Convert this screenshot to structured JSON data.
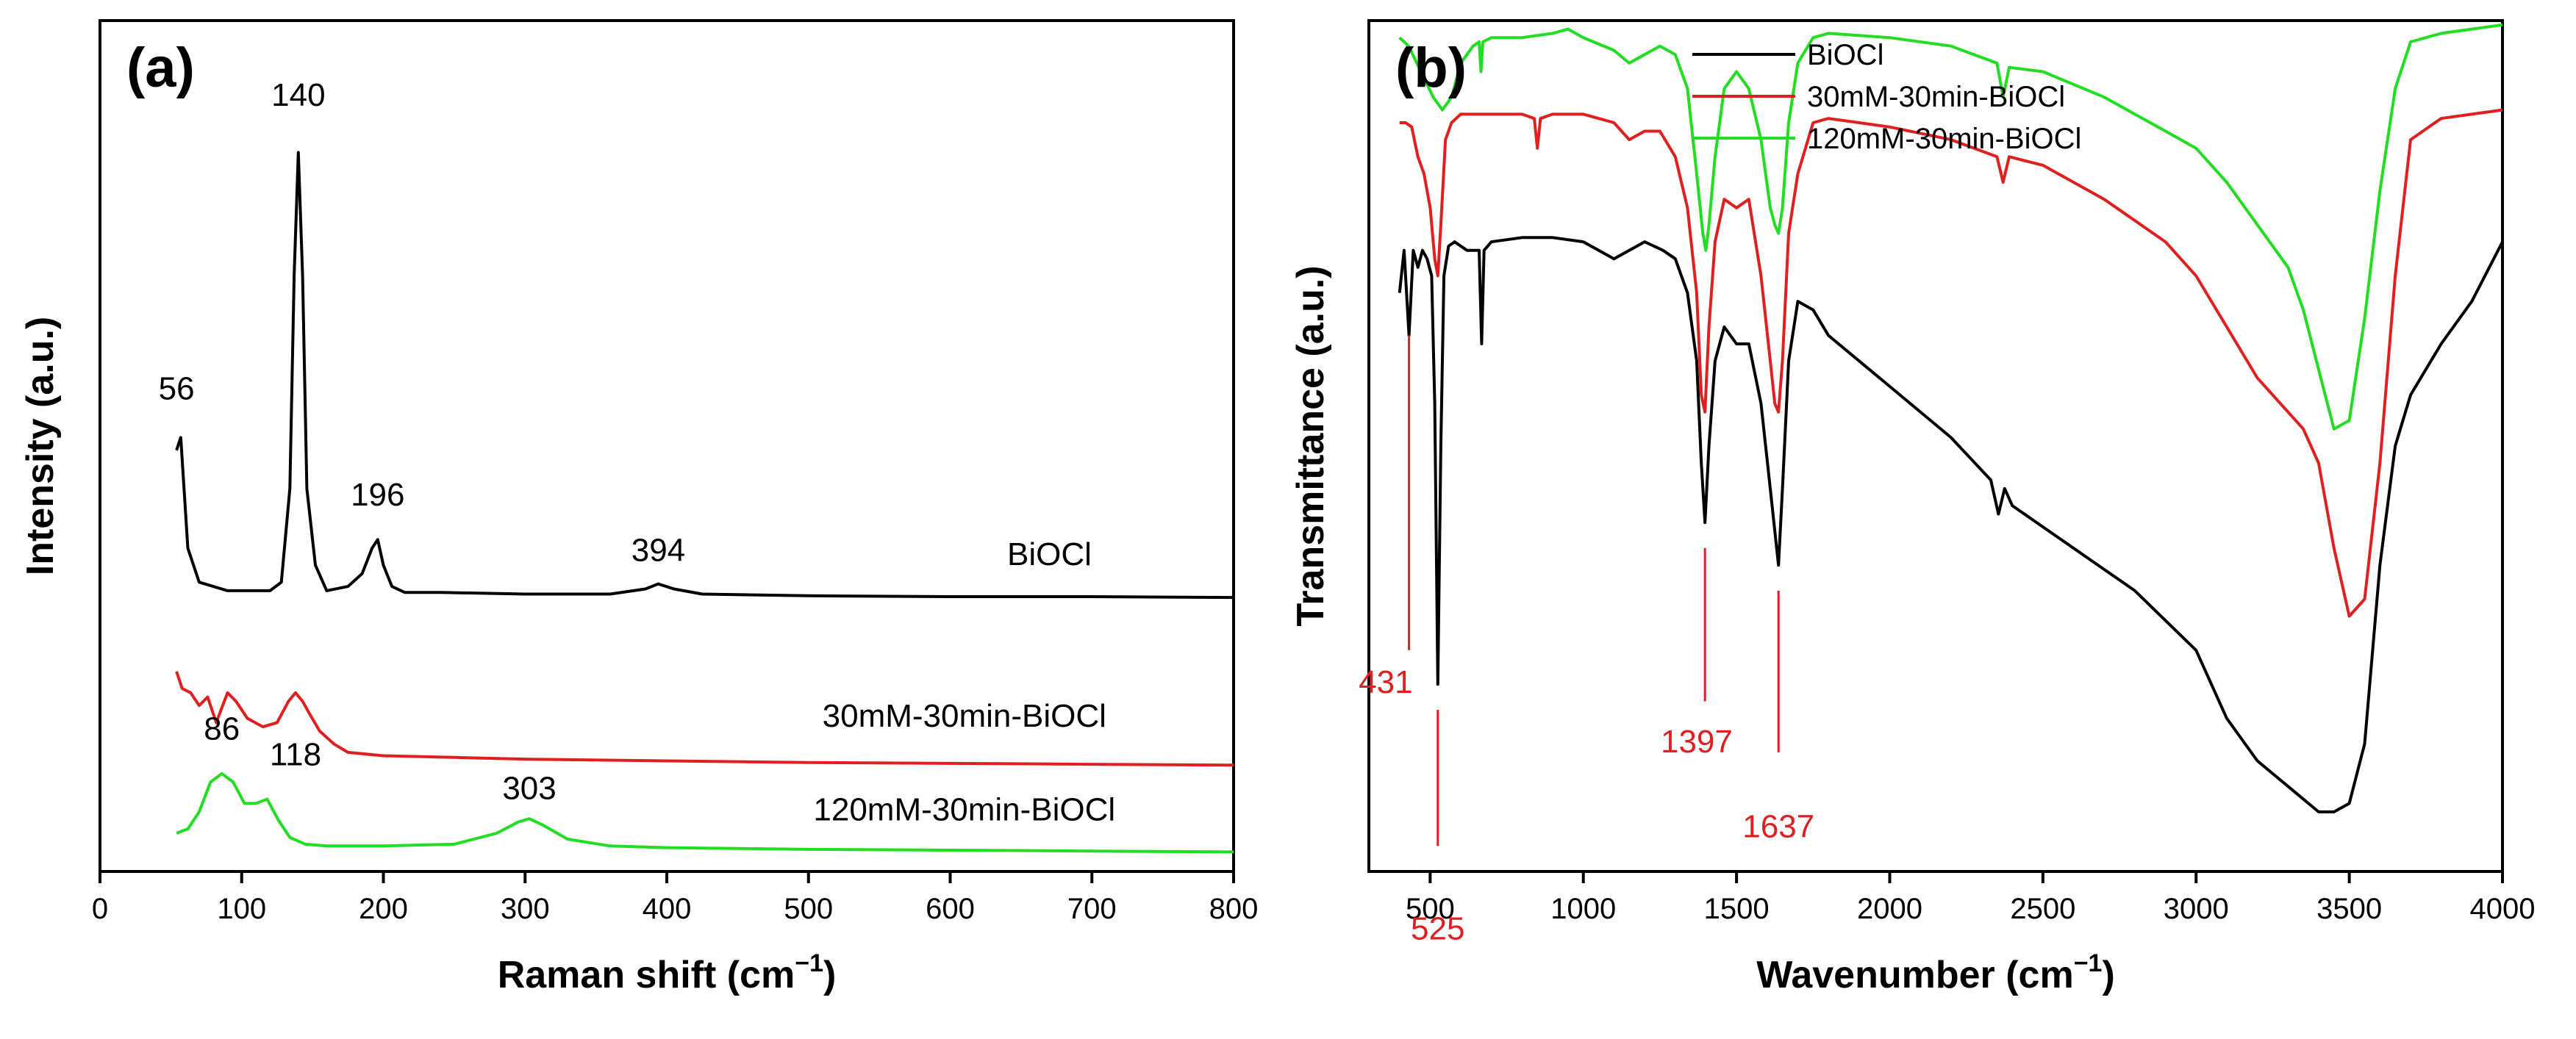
{
  "chart_data": [
    {
      "type": "line",
      "panel_label": "(a)",
      "xlabel": "Raman shift (cm",
      "xlabel_sup": "−1",
      "xlabel_close": ")",
      "ylabel": "Intensity (a.u.)",
      "xlim": [
        0,
        800
      ],
      "ylim": [
        0,
        100
      ],
      "yticks_visible": false,
      "xticks": [
        0,
        100,
        200,
        300,
        400,
        500,
        600,
        700,
        800
      ],
      "xtick_labels": [
        "0",
        "100",
        "200",
        "300",
        "400",
        "500",
        "600",
        "700",
        "800"
      ],
      "series": [
        {
          "name": "BiOCl",
          "color": "#000000",
          "x": [
            54,
            57,
            62,
            70,
            90,
            120,
            128,
            134,
            137,
            140,
            143,
            146,
            152,
            160,
            175,
            185,
            192,
            196,
            200,
            206,
            215,
            240,
            300,
            360,
            385,
            394,
            405,
            425,
            500,
            600,
            700,
            800
          ],
          "y": [
            49.5,
            51.0,
            38.0,
            34.0,
            33.0,
            33.0,
            34.0,
            45.0,
            70.0,
            84.5,
            70.0,
            45.0,
            36.0,
            33.0,
            33.5,
            35.0,
            38.0,
            39.0,
            36.0,
            33.5,
            32.8,
            32.8,
            32.6,
            32.6,
            33.2,
            33.8,
            33.2,
            32.6,
            32.4,
            32.3,
            32.3,
            32.2
          ]
        },
        {
          "name": "30mM-30min-BiOCl",
          "color": "#e02020",
          "x": [
            54,
            58,
            64,
            70,
            76,
            82,
            90,
            96,
            104,
            115,
            125,
            133,
            138,
            143,
            148,
            155,
            165,
            175,
            200,
            250,
            300,
            400,
            500,
            600,
            700,
            800
          ],
          "y": [
            23.5,
            21.5,
            21.0,
            19.5,
            20.5,
            17.5,
            21.0,
            20.0,
            18.0,
            17.0,
            17.5,
            20.0,
            21.0,
            20.0,
            18.5,
            16.5,
            15.0,
            14.0,
            13.6,
            13.4,
            13.2,
            13.0,
            12.8,
            12.7,
            12.6,
            12.5
          ]
        },
        {
          "name": "120mM-30min-BiOCl",
          "color": "#22dd22",
          "x": [
            54,
            62,
            70,
            78,
            86,
            94,
            102,
            110,
            118,
            126,
            134,
            145,
            160,
            200,
            250,
            280,
            295,
            303,
            312,
            330,
            360,
            400,
            500,
            600,
            700,
            800
          ],
          "y": [
            4.5,
            5.0,
            7.0,
            10.5,
            11.5,
            10.5,
            8.0,
            8.0,
            8.5,
            6.0,
            4.0,
            3.2,
            3.0,
            3.0,
            3.2,
            4.5,
            5.8,
            6.2,
            5.5,
            3.8,
            3.0,
            2.8,
            2.6,
            2.5,
            2.4,
            2.3
          ]
        }
      ],
      "annotations": [
        {
          "text": "56",
          "x": 54,
          "y": 55.5,
          "color": "#000000"
        },
        {
          "text": "140",
          "x": 140,
          "y": 90,
          "color": "#000000"
        },
        {
          "text": "196",
          "x": 196,
          "y": 43,
          "color": "#000000"
        },
        {
          "text": "394",
          "x": 394,
          "y": 36.5,
          "color": "#000000"
        },
        {
          "text": "BiOCl",
          "x": 670,
          "y": 36,
          "color": "#000000"
        },
        {
          "text": "30mM-30min-BiOCl",
          "x": 610,
          "y": 17,
          "color": "#000000"
        },
        {
          "text": "86",
          "x": 86,
          "y": 15.5,
          "color": "#000000"
        },
        {
          "text": "118",
          "x": 138,
          "y": 12.5,
          "color": "#000000"
        },
        {
          "text": "303",
          "x": 303,
          "y": 8.5,
          "color": "#000000"
        },
        {
          "text": "120mM-30min-BiOCl",
          "x": 610,
          "y": 6,
          "color": "#000000"
        }
      ]
    },
    {
      "type": "line",
      "panel_label": "(b)",
      "xlabel": "Wavenumber (cm",
      "xlabel_sup": "−1",
      "xlabel_close": ")",
      "ylabel": "Transmittance (a.u.)",
      "xlim": [
        300,
        4000
      ],
      "ylim": [
        0,
        100
      ],
      "yticks_visible": false,
      "xticks": [
        500,
        1000,
        1500,
        2000,
        2500,
        3000,
        3500,
        4000
      ],
      "xtick_labels": [
        "500",
        "1000",
        "1500",
        "2000",
        "2500",
        "3000",
        "3500",
        "4000"
      ],
      "legend_position": "top-center",
      "series": [
        {
          "name": "BiOCl",
          "color": "#000000",
          "x": [
            400,
            415,
            431,
            445,
            460,
            475,
            490,
            505,
            515,
            525,
            535,
            545,
            560,
            580,
            620,
            660,
            668,
            676,
            700,
            800,
            900,
            1000,
            1100,
            1200,
            1260,
            1300,
            1340,
            1370,
            1385,
            1397,
            1410,
            1430,
            1460,
            1500,
            1540,
            1580,
            1610,
            1625,
            1637,
            1650,
            1670,
            1700,
            1750,
            1800,
            2000,
            2200,
            2330,
            2355,
            2375,
            2400,
            2600,
            2800,
            3000,
            3100,
            3200,
            3300,
            3400,
            3450,
            3500,
            3550,
            3600,
            3650,
            3700,
            3800,
            3900,
            4000
          ],
          "y": [
            68.0,
            73.0,
            63.0,
            73.0,
            71.0,
            73.0,
            72.0,
            70.0,
            55.0,
            22.0,
            50.0,
            70.0,
            73.5,
            74.0,
            73.0,
            73.0,
            62.0,
            73.0,
            74.0,
            74.5,
            74.5,
            74.0,
            72.0,
            74.0,
            73.0,
            72.0,
            68.0,
            60.0,
            48.0,
            41.0,
            50.0,
            60.0,
            64.0,
            62.0,
            62.0,
            55.0,
            45.0,
            40.0,
            36.0,
            45.0,
            60.0,
            67.0,
            66.0,
            63.0,
            57.0,
            51.0,
            46.0,
            42.0,
            45.0,
            43.0,
            38.0,
            33.0,
            26.0,
            18.0,
            13.0,
            10.0,
            7.0,
            7.0,
            8.0,
            15.0,
            36.0,
            50.0,
            56.0,
            62.0,
            67.0,
            74.0
          ]
        },
        {
          "name": "30mM-30min-BiOCl",
          "color": "#e02020",
          "x": [
            400,
            420,
            440,
            460,
            480,
            500,
            515,
            525,
            535,
            550,
            570,
            600,
            700,
            800,
            840,
            850,
            860,
            900,
            1000,
            1100,
            1150,
            1200,
            1250,
            1300,
            1340,
            1370,
            1385,
            1397,
            1410,
            1430,
            1460,
            1500,
            1540,
            1580,
            1610,
            1625,
            1637,
            1650,
            1670,
            1700,
            1750,
            1800,
            2000,
            2200,
            2350,
            2370,
            2390,
            2500,
            2700,
            2900,
            3000,
            3100,
            3200,
            3300,
            3350,
            3400,
            3450,
            3500,
            3550,
            3600,
            3650,
            3700,
            3800,
            3900,
            4000
          ],
          "y": [
            88.0,
            88.0,
            87.5,
            84.0,
            82.0,
            78.0,
            72.0,
            70.0,
            76.0,
            86.0,
            88.0,
            89.0,
            89.0,
            89.0,
            88.5,
            85.0,
            88.5,
            89.0,
            89.0,
            88.0,
            86.0,
            87.0,
            87.0,
            84.0,
            78.0,
            68.0,
            56.0,
            54.0,
            64.0,
            74.0,
            79.0,
            78.0,
            79.0,
            70.0,
            60.0,
            55.0,
            54.0,
            60.0,
            75.0,
            82.0,
            88.0,
            88.5,
            87.5,
            86.0,
            84.0,
            81.0,
            84.0,
            83.0,
            79.0,
            74.0,
            70.0,
            64.0,
            58.0,
            54.0,
            52.0,
            48.0,
            38.0,
            30.0,
            32.0,
            48.0,
            70.0,
            86.0,
            88.5,
            89.0,
            89.5
          ]
        },
        {
          "name": "120mM-30min-BiOCl",
          "color": "#22dd22",
          "x": [
            400,
            430,
            470,
            510,
            540,
            570,
            600,
            640,
            660,
            666,
            672,
            700,
            800,
            900,
            950,
            1000,
            1100,
            1150,
            1200,
            1250,
            1300,
            1340,
            1370,
            1390,
            1400,
            1410,
            1430,
            1460,
            1500,
            1540,
            1580,
            1610,
            1625,
            1637,
            1650,
            1670,
            1700,
            1750,
            1800,
            2000,
            2200,
            2350,
            2370,
            2390,
            2500,
            2700,
            2900,
            3000,
            3100,
            3200,
            3300,
            3350,
            3400,
            3450,
            3500,
            3550,
            3600,
            3650,
            3700,
            3800,
            3900,
            4000
          ],
          "y": [
            98.0,
            97.0,
            94.0,
            91.0,
            89.5,
            91.0,
            95.0,
            97.0,
            97.5,
            94.0,
            97.5,
            98.0,
            98.0,
            98.5,
            99.0,
            98.0,
            96.5,
            95.0,
            96.0,
            97.0,
            96.0,
            92.0,
            82.0,
            75.0,
            73.0,
            76.0,
            84.0,
            92.0,
            94.0,
            92.0,
            86.0,
            78.0,
            76.0,
            75.0,
            78.0,
            88.0,
            95.0,
            98.0,
            98.5,
            98.0,
            97.0,
            95.0,
            91.0,
            94.5,
            94.0,
            91.0,
            87.0,
            85.0,
            81.0,
            76.0,
            71.0,
            66.0,
            59.0,
            52.0,
            53.0,
            65.0,
            80.0,
            92.0,
            97.5,
            98.5,
            99.0,
            99.5
          ]
        }
      ],
      "annotations": [
        {
          "text": "431",
          "x": 355,
          "y": 21,
          "color": "#e02020",
          "line": [
            431,
            63,
            431,
            26
          ]
        },
        {
          "text": "525",
          "x": 525,
          "y": -8,
          "color": "#e02020",
          "line": [
            525,
            19,
            525,
            3
          ]
        },
        {
          "text": "1397",
          "x": 1370,
          "y": 14,
          "color": "#e02020",
          "line": [
            1397,
            38,
            1397,
            20
          ]
        },
        {
          "text": "1637",
          "x": 1637,
          "y": 4,
          "color": "#e02020",
          "line": [
            1637,
            33,
            1637,
            14
          ]
        }
      ]
    }
  ]
}
